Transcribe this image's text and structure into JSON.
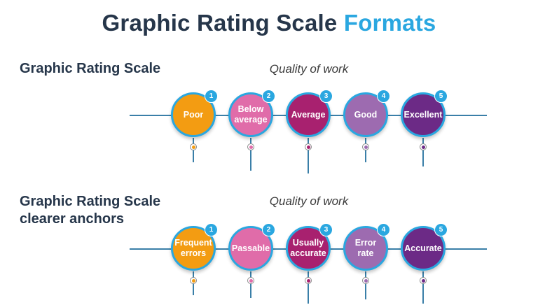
{
  "title": {
    "main": "Graphic Rating Scale",
    "accent": "Formats"
  },
  "colors": {
    "ring": "#2aa7e0",
    "line": "#3a7fa8",
    "c1": "#f39c12",
    "c2": "#e06ca9",
    "c3": "#a8216f",
    "c4": "#9d6bb0",
    "c5": "#6c2a86"
  },
  "scales": [
    {
      "heading_line1": "Graphic Rating Scale",
      "heading_line2": "",
      "subtitle": "Quality of work",
      "items": [
        {
          "num": "1",
          "line1": "Poor",
          "line2": ""
        },
        {
          "num": "2",
          "line1": "Below",
          "line2": "average"
        },
        {
          "num": "3",
          "line1": "Average",
          "line2": ""
        },
        {
          "num": "4",
          "line1": "Good",
          "line2": ""
        },
        {
          "num": "5",
          "line1": "Excellent",
          "line2": ""
        }
      ]
    },
    {
      "heading_line1": "Graphic Rating Scale",
      "heading_line2": "clearer anchors",
      "subtitle": "Quality of work",
      "items": [
        {
          "num": "1",
          "line1": "Frequent",
          "line2": "errors"
        },
        {
          "num": "2",
          "line1": "Passable",
          "line2": ""
        },
        {
          "num": "3",
          "line1": "Usually",
          "line2": "accurate"
        },
        {
          "num": "4",
          "line1": "Error",
          "line2": "rate"
        },
        {
          "num": "5",
          "line1": "Accurate",
          "line2": ""
        }
      ]
    }
  ]
}
